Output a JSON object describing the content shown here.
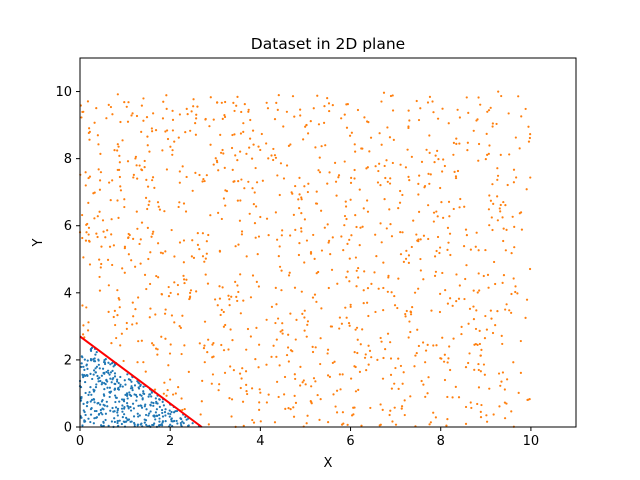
{
  "chart_data": {
    "type": "scatter",
    "title": "Dataset in 2D plane",
    "xlabel": "X",
    "ylabel": "Y",
    "xlim": [
      0,
      11
    ],
    "ylim": [
      0,
      11
    ],
    "xticks": [
      0,
      2,
      4,
      6,
      8,
      10
    ],
    "yticks": [
      0,
      2,
      4,
      6,
      8,
      10
    ],
    "grid": false,
    "legend": "none",
    "series": [
      {
        "color": "#1f77b4",
        "region": "x + y < 2.7",
        "x_range": [
          0,
          2.7
        ],
        "y_range": [
          0,
          2.7
        ],
        "approx_count": 400
      },
      {
        "color": "#ff7f0e",
        "region": "x + y > 2.7",
        "x_range": [
          0,
          10
        ],
        "y_range": [
          0,
          10
        ],
        "approx_count": 1200
      }
    ],
    "lines": [
      {
        "color": "#ff0000",
        "x": [
          0,
          2.7
        ],
        "y": [
          2.7,
          0
        ]
      }
    ]
  }
}
